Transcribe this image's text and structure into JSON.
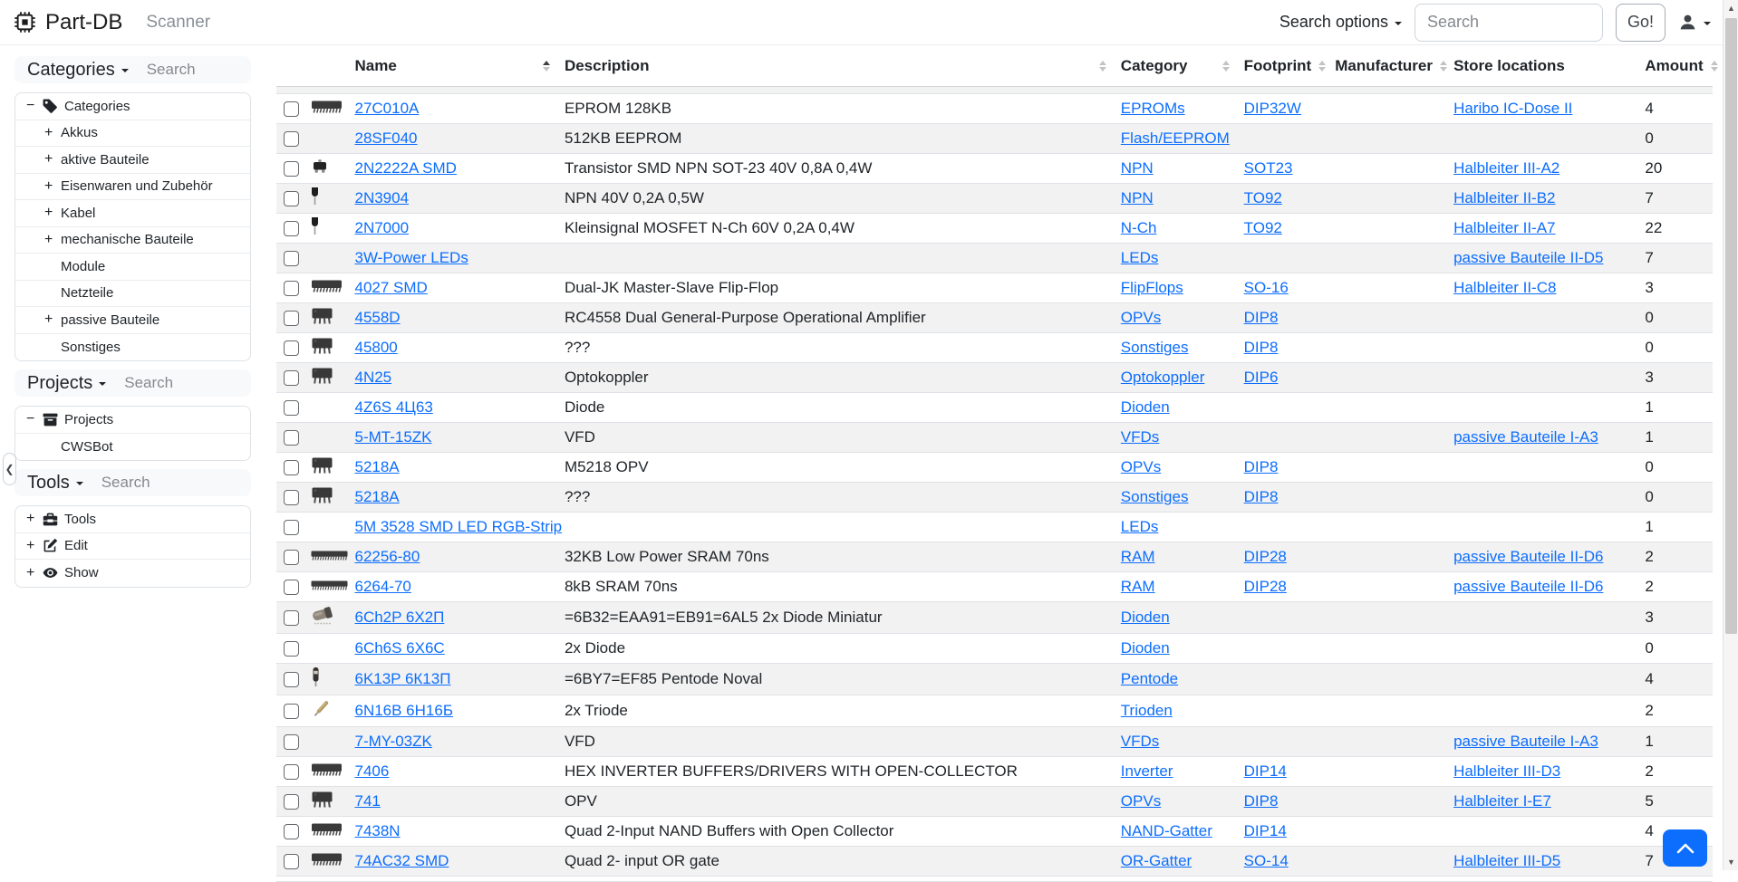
{
  "navbar": {
    "brand": "Part-DB",
    "scanner": "Scanner",
    "search_options_label": "Search options",
    "search_placeholder": "Search",
    "go_label": "Go!"
  },
  "sidebar": {
    "collapse_glyph": "❮",
    "sections": [
      {
        "title": "Categories",
        "search_placeholder": "Search",
        "tree": [
          {
            "label": "Categories",
            "expander": "−",
            "icon": "tag-icon",
            "level": 0
          },
          {
            "label": "Akkus",
            "expander": "+",
            "level": 1
          },
          {
            "label": "aktive Bauteile",
            "expander": "+",
            "level": 1
          },
          {
            "label": "Eisenwaren und Zubehör",
            "expander": "+",
            "level": 1
          },
          {
            "label": "Kabel",
            "expander": "+",
            "level": 1
          },
          {
            "label": "mechanische Bauteile",
            "expander": "+",
            "level": 1
          },
          {
            "label": "Module",
            "level": 1
          },
          {
            "label": "Netzteile",
            "level": 1
          },
          {
            "label": "passive Bauteile",
            "expander": "+",
            "level": 1
          },
          {
            "label": "Sonstiges",
            "level": 1
          }
        ]
      },
      {
        "title": "Projects",
        "search_placeholder": "Search",
        "tree": [
          {
            "label": "Projects",
            "expander": "−",
            "icon": "archive-icon",
            "level": 0
          },
          {
            "label": "CWSBot",
            "level": 1
          }
        ]
      },
      {
        "title": "Tools",
        "search_placeholder": "Search",
        "tree": [
          {
            "label": "Tools",
            "expander": "+",
            "icon": "toolbox-icon",
            "level": 0
          },
          {
            "label": "Edit",
            "expander": "+",
            "icon": "edit-icon",
            "level": 0
          },
          {
            "label": "Show",
            "expander": "+",
            "icon": "eye-icon",
            "level": 0
          }
        ]
      }
    ]
  },
  "table": {
    "columns": [
      {
        "key": "select",
        "label": ""
      },
      {
        "key": "image",
        "label": ""
      },
      {
        "key": "name",
        "label": "Name",
        "sort": "asc"
      },
      {
        "key": "description",
        "label": "Description",
        "sort": "none"
      },
      {
        "key": "category",
        "label": "Category",
        "sort": "none"
      },
      {
        "key": "footprint",
        "label": "Footprint",
        "sort": "none"
      },
      {
        "key": "manufacturer",
        "label": "Manufacturer",
        "sort": "none"
      },
      {
        "key": "store_location",
        "label": "Store locations"
      },
      {
        "key": "amount",
        "label": "Amount",
        "sort": "none"
      }
    ],
    "rows": [
      {
        "image": "dip-ic-side",
        "name": "27C010A",
        "description": "EPROM 128KB",
        "category": "EPROMs",
        "footprint": "DIP32W",
        "manufacturer": "",
        "store_location": "Haribo IC-Dose II",
        "amount": "4"
      },
      {
        "image": "",
        "name": "28SF040",
        "description": "512KB EEPROM",
        "category": "Flash/EEPROM",
        "footprint": "",
        "manufacturer": "",
        "store_location": "",
        "amount": "0"
      },
      {
        "image": "sot23-smd",
        "name": "2N2222A SMD",
        "description": "Transistor SMD NPN SOT-23 40V 0,8A 0,4W",
        "category": "NPN",
        "footprint": "SOT23",
        "manufacturer": "",
        "store_location": "Halbleiter III-A2",
        "amount": "20"
      },
      {
        "image": "to92-transistor",
        "name": "2N3904",
        "description": "NPN 40V 0,2A 0,5W",
        "category": "NPN",
        "footprint": "TO92",
        "manufacturer": "",
        "store_location": "Halbleiter II-B2",
        "amount": "7"
      },
      {
        "image": "to92-transistor",
        "name": "2N7000",
        "description": "Kleinsignal MOSFET N-Ch 60V 0,2A 0,4W",
        "category": "N-Ch",
        "footprint": "TO92",
        "manufacturer": "",
        "store_location": "Halbleiter II-A7",
        "amount": "22"
      },
      {
        "image": "",
        "name": "3W-Power LEDs",
        "description": "",
        "category": "LEDs",
        "footprint": "",
        "manufacturer": "",
        "store_location": "passive Bauteile II-D5",
        "amount": "7"
      },
      {
        "image": "dip-ic-side",
        "name": "4027 SMD",
        "description": "Dual-JK Master-Slave Flip-Flop",
        "category": "FlipFlops",
        "footprint": "SO-16",
        "manufacturer": "",
        "store_location": "Halbleiter II-C8",
        "amount": "3"
      },
      {
        "image": "dip8-ic",
        "name": "4558D",
        "description": "RC4558 Dual General-Purpose Operational Amplifier",
        "category": "OPVs",
        "footprint": "DIP8",
        "manufacturer": "",
        "store_location": "",
        "amount": "0"
      },
      {
        "image": "dip8-ic",
        "name": "45800",
        "description": "???",
        "category": "Sonstiges",
        "footprint": "DIP8",
        "manufacturer": "",
        "store_location": "",
        "amount": "0"
      },
      {
        "image": "dip8-ic",
        "name": "4N25",
        "description": "Optokoppler",
        "category": "Optokoppler",
        "footprint": "DIP6",
        "manufacturer": "",
        "store_location": "",
        "amount": "3"
      },
      {
        "image": "",
        "name": "4Z6S 4Ц63",
        "description": "Diode",
        "category": "Dioden",
        "footprint": "",
        "manufacturer": "",
        "store_location": "",
        "amount": "1"
      },
      {
        "image": "",
        "name": "5-MT-15ZK",
        "description": "VFD",
        "category": "VFDs",
        "footprint": "",
        "manufacturer": "",
        "store_location": "passive Bauteile I-A3",
        "amount": "1"
      },
      {
        "image": "dip8-ic",
        "name": "5218A",
        "description": "M5218 OPV",
        "category": "OPVs",
        "footprint": "DIP8",
        "manufacturer": "",
        "store_location": "",
        "amount": "0"
      },
      {
        "image": "dip8-ic",
        "name": "5218A",
        "description": "???",
        "category": "Sonstiges",
        "footprint": "DIP8",
        "manufacturer": "",
        "store_location": "",
        "amount": "0"
      },
      {
        "image": "",
        "name": "5M 3528 SMD LED RGB-Strip",
        "description": "",
        "category": "LEDs",
        "footprint": "",
        "manufacturer": "",
        "store_location": "",
        "amount": "1"
      },
      {
        "image": "dip-ic-long",
        "name": "62256-80",
        "description": "32KB Low Power SRAM 70ns",
        "category": "RAM",
        "footprint": "DIP28",
        "manufacturer": "",
        "store_location": "passive Bauteile II-D6",
        "amount": "2"
      },
      {
        "image": "dip-ic-long",
        "name": "6264-70",
        "description": "8kB SRAM 70ns",
        "category": "RAM",
        "footprint": "DIP28",
        "manufacturer": "",
        "store_location": "passive Bauteile II-D6",
        "amount": "2"
      },
      {
        "image": "tube-horizontal",
        "name": "6Ch2P 6Х2П",
        "description": "=6B32=EAA91=EB91=6AL5 2x Diode Miniatur",
        "category": "Dioden",
        "footprint": "",
        "manufacturer": "",
        "store_location": "",
        "amount": "3"
      },
      {
        "image": "",
        "name": "6Ch6S 6X6C",
        "description": "2x Diode",
        "category": "Dioden",
        "footprint": "",
        "manufacturer": "",
        "store_location": "",
        "amount": "0"
      },
      {
        "image": "tube-vertical",
        "name": "6K13P 6К13П",
        "description": "=6BY7=EF85 Pentode Noval",
        "category": "Pentode",
        "footprint": "",
        "manufacturer": "",
        "store_location": "",
        "amount": "4"
      },
      {
        "image": "tube-diagonal",
        "name": "6N16B 6Н16Б",
        "description": "2x Triode",
        "category": "Trioden",
        "footprint": "",
        "manufacturer": "",
        "store_location": "",
        "amount": "2"
      },
      {
        "image": "",
        "name": "7-MY-03ZK",
        "description": "VFD",
        "category": "VFDs",
        "footprint": "",
        "manufacturer": "",
        "store_location": "passive Bauteile I-A3",
        "amount": "1"
      },
      {
        "image": "dip-ic-side",
        "name": "7406",
        "description": "HEX INVERTER BUFFERS/DRIVERS WITH OPEN-COLLECTOR",
        "category": "Inverter",
        "footprint": "DIP14",
        "manufacturer": "",
        "store_location": "Halbleiter III-D3",
        "amount": "2"
      },
      {
        "image": "dip8-ic",
        "name": "741",
        "description": "OPV",
        "category": "OPVs",
        "footprint": "DIP8",
        "manufacturer": "",
        "store_location": "Halbleiter I-E7",
        "amount": "5"
      },
      {
        "image": "dip-ic-side",
        "name": "7438N",
        "description": "Quad 2-Input NAND Buffers with Open Collector",
        "category": "NAND-Gatter",
        "footprint": "DIP14",
        "manufacturer": "",
        "store_location": "",
        "amount": "4"
      },
      {
        "image": "dip-ic-side",
        "name": "74AC32 SMD",
        "description": "Quad 2- input OR gate",
        "category": "OR-Gatter",
        "footprint": "SO-14",
        "manufacturer": "",
        "store_location": "Halbleiter III-D5",
        "amount": "7"
      }
    ]
  },
  "scrollbar": {
    "up_glyph": "▲",
    "down_glyph": "▼"
  },
  "colors": {
    "primary": "#0d6efd",
    "link": "#0d6efd",
    "stripe": "#f2f2f2"
  }
}
